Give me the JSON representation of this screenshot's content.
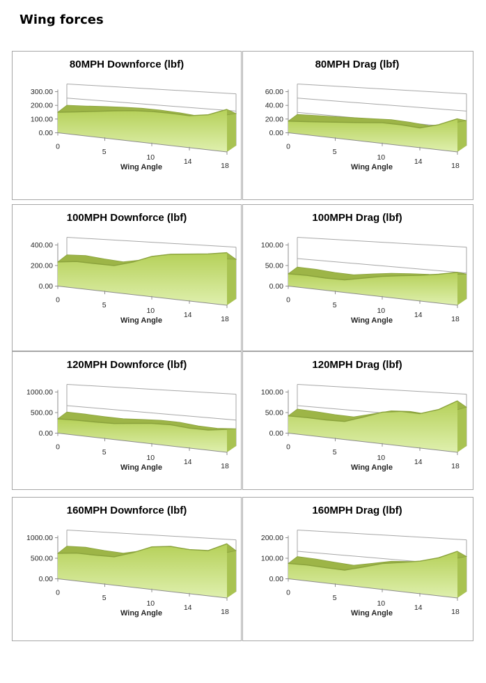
{
  "page": {
    "title": "Wing forces"
  },
  "style": {
    "area_top": "#b5d058",
    "area_bottom": "#dff0ae",
    "ribbon": "#9db547",
    "ribbon_edge": "#8aa23c",
    "side": "#a9c352",
    "grid": "#a6a6a6",
    "axis": "#8c8c8c",
    "tick_text": "#262626",
    "title_text": "#000000",
    "panel_border": "#a6a6a6"
  },
  "chart_data": [
    {
      "type": "area",
      "title": "80MPH Downforce (lbf)",
      "xlabel": "Wing Angle",
      "x": [
        0,
        2,
        4,
        6,
        8,
        10,
        12,
        14,
        16,
        18
      ],
      "values": [
        150,
        156,
        163,
        169,
        172,
        170,
        163,
        153,
        160,
        186
      ],
      "ymax": 300,
      "ylim": [
        0,
        300
      ],
      "yticks": [
        "0.00",
        "100.00",
        "200.00",
        "300.00"
      ],
      "ytick_values": [
        0,
        100,
        200,
        300
      ],
      "xtick_labels": [
        "0",
        "5",
        "10",
        "14",
        "18"
      ],
      "xtick_values": [
        0,
        5,
        10,
        14,
        18
      ],
      "grid": "on",
      "legend": "none"
    },
    {
      "type": "area",
      "title": "80MPH Drag (lbf)",
      "xlabel": "Wing Angle",
      "x": [
        0,
        2,
        4,
        6,
        8,
        10,
        12,
        14,
        16,
        18
      ],
      "values": [
        17,
        18,
        19,
        20,
        21,
        22,
        21,
        19,
        23,
        29
      ],
      "ymax": 60,
      "ylim": [
        0,
        60
      ],
      "yticks": [
        "0.00",
        "20.00",
        "40.00",
        "60.00"
      ],
      "ytick_values": [
        0,
        20,
        40,
        60
      ],
      "xtick_labels": [
        "0",
        "5",
        "10",
        "14",
        "18"
      ],
      "xtick_values": [
        0,
        5,
        10,
        14,
        18
      ],
      "grid": "on",
      "legend": "none"
    },
    {
      "type": "area",
      "title": "100MPH Downforce (lbf)",
      "xlabel": "Wing Angle",
      "x": [
        0,
        2,
        4,
        6,
        8,
        10,
        12,
        14,
        16,
        18
      ],
      "values": [
        235,
        242,
        226,
        214,
        244,
        286,
        300,
        300,
        300,
        306
      ],
      "ymax": 400,
      "ylim": [
        0,
        400
      ],
      "yticks": [
        "0.00",
        "200.00",
        "400.00"
      ],
      "ytick_values": [
        0,
        200,
        400
      ],
      "xtick_labels": [
        "0",
        "5",
        "10",
        "14",
        "18"
      ],
      "xtick_values": [
        0,
        5,
        10,
        14,
        18
      ],
      "grid": "on",
      "legend": "none"
    },
    {
      "type": "area",
      "title": "100MPH Drag (lbf)",
      "xlabel": "Wing Angle",
      "x": [
        0,
        2,
        4,
        6,
        8,
        10,
        12,
        14,
        16,
        18
      ],
      "values": [
        30,
        29,
        26,
        25,
        31,
        36,
        39,
        41,
        44,
        48
      ],
      "ymax": 100,
      "ylim": [
        0,
        100
      ],
      "yticks": [
        "0.00",
        "50.00",
        "100.00"
      ],
      "ytick_values": [
        0,
        50,
        100
      ],
      "xtick_labels": [
        "0",
        "5",
        "10",
        "14",
        "18"
      ],
      "xtick_values": [
        0,
        5,
        10,
        14,
        18
      ],
      "grid": "on",
      "legend": "none"
    },
    {
      "type": "area",
      "title": "120MPH Downforce (lbf)",
      "xlabel": "Wing Angle",
      "x": [
        0,
        2,
        4,
        6,
        8,
        10,
        12,
        14,
        16,
        18
      ],
      "values": [
        350,
        342,
        326,
        318,
        342,
        362,
        356,
        318,
        308,
        335
      ],
      "ymax": 1000,
      "ylim": [
        0,
        1000
      ],
      "yticks": [
        "0.00",
        "500.00",
        "1000.00"
      ],
      "ytick_values": [
        0,
        500,
        1000
      ],
      "xtick_labels": [
        "0",
        "5",
        "10",
        "14",
        "18"
      ],
      "xtick_values": [
        0,
        5,
        10,
        14,
        18
      ],
      "grid": "on",
      "legend": "none"
    },
    {
      "type": "area",
      "title": "120MPH Drag (lbf)",
      "xlabel": "Wing Angle",
      "x": [
        0,
        2,
        4,
        6,
        8,
        10,
        12,
        14,
        16,
        18
      ],
      "values": [
        42,
        40,
        37,
        36,
        46,
        56,
        58,
        55,
        62,
        75
      ],
      "ymax": 100,
      "ylim": [
        0,
        100
      ],
      "yticks": [
        "0.00",
        "50.00",
        "100.00"
      ],
      "ytick_values": [
        0,
        50,
        100
      ],
      "xtick_labels": [
        "0",
        "5",
        "10",
        "14",
        "18"
      ],
      "xtick_values": [
        0,
        5,
        10,
        14,
        18
      ],
      "grid": "on",
      "legend": "none"
    },
    {
      "type": "area",
      "title": "160MPH Downforce (lbf)",
      "xlabel": "Wing Angle",
      "x": [
        0,
        2,
        4,
        6,
        8,
        10,
        12,
        14,
        16,
        18
      ],
      "values": [
        620,
        630,
        590,
        565,
        650,
        755,
        760,
        705,
        690,
        790
      ],
      "ymax": 1000,
      "ylim": [
        0,
        1000
      ],
      "yticks": [
        "0.00",
        "500.00",
        "1000.00"
      ],
      "ytick_values": [
        0,
        500,
        1000
      ],
      "xtick_labels": [
        "0",
        "5",
        "10",
        "14",
        "18"
      ],
      "xtick_values": [
        0,
        5,
        10,
        14,
        18
      ],
      "grid": "on",
      "legend": "none"
    },
    {
      "type": "area",
      "title": "160MPH Drag (lbf)",
      "xlabel": "Wing Angle",
      "x": [
        0,
        2,
        4,
        6,
        8,
        10,
        12,
        14,
        16,
        18
      ],
      "values": [
        75,
        72,
        65,
        60,
        76,
        92,
        98,
        104,
        116,
        136
      ],
      "ymax": 200,
      "ylim": [
        0,
        200
      ],
      "yticks": [
        "0.00",
        "100.00",
        "200.00"
      ],
      "ytick_values": [
        0,
        100,
        200
      ],
      "xtick_labels": [
        "0",
        "5",
        "10",
        "14",
        "18"
      ],
      "xtick_values": [
        0,
        5,
        10,
        14,
        18
      ],
      "grid": "on",
      "legend": "none"
    }
  ]
}
